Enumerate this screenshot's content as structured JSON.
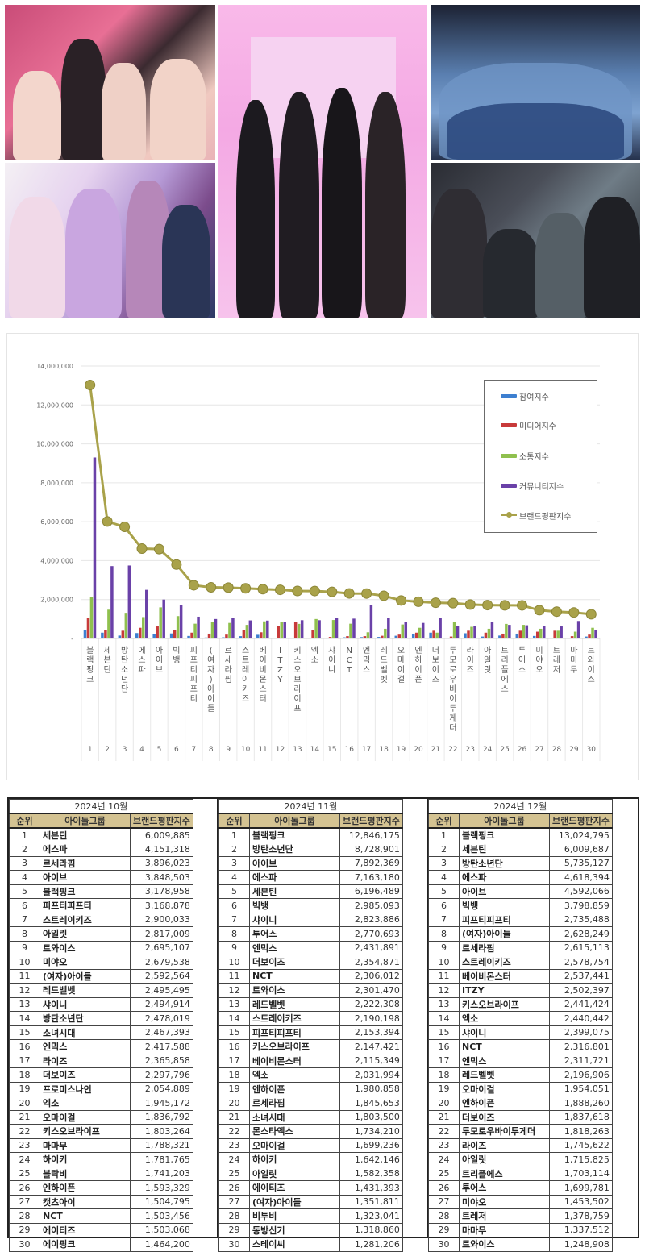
{
  "collage": {
    "photos": [
      {
        "id": "p1",
        "desc": "girl-group-pink-background"
      },
      {
        "id": "p2",
        "desc": "girl-group-lavender-outfits"
      },
      {
        "id": "p3",
        "desc": "four-member-girl-group-pink-room"
      },
      {
        "id": "p4",
        "desc": "boy-group-blue-suits"
      },
      {
        "id": "p5",
        "desc": "seven-member-boy-group-dark"
      }
    ]
  },
  "chart_data": {
    "type": "bar",
    "title": "",
    "xlabel": "",
    "ylabel": "",
    "ylim": [
      0,
      14000000
    ],
    "yticks": [
      "-",
      "2,000,000",
      "4,000,000",
      "6,000,000",
      "8,000,000",
      "10,000,000",
      "12,000,000",
      "14,000,000"
    ],
    "grid": true,
    "legend_position": "upper-right",
    "categories": [
      "블랙핑크",
      "세븐틴",
      "방탄소년단",
      "에스파",
      "아이브",
      "빅뱅",
      "피프티피프티",
      "(여자)아이들",
      "르세라핌",
      "스트레이키즈",
      "베이비몬스터",
      "ITZY",
      "키스오브라이프",
      "엑소",
      "샤이니",
      "NCT",
      "엔믹스",
      "레드벨벳",
      "오마이걸",
      "엔하이픈",
      "더보이즈",
      "투모로우바이투게더",
      "라이즈",
      "아일릿",
      "트리플에스",
      "투어스",
      "미야오",
      "트레저",
      "마마무",
      "트와이스"
    ],
    "ranks": [
      1,
      2,
      3,
      4,
      5,
      6,
      7,
      8,
      9,
      10,
      11,
      12,
      13,
      14,
      15,
      16,
      17,
      18,
      19,
      20,
      21,
      22,
      23,
      24,
      25,
      26,
      27,
      28,
      29,
      30
    ],
    "series": [
      {
        "name": "참여지수",
        "color": "#3d7fd0",
        "kind": "bar",
        "values": [
          420000,
          300000,
          150000,
          280000,
          220000,
          260000,
          130000,
          50000,
          60000,
          120000,
          190000,
          40000,
          30000,
          40000,
          40000,
          60000,
          70000,
          80000,
          140000,
          250000,
          300000,
          40000,
          270000,
          100000,
          150000,
          250000,
          130000,
          40000,
          40000,
          100000
        ]
      },
      {
        "name": "미디어지수",
        "color": "#c83a3a",
        "kind": "bar",
        "values": [
          1050000,
          420000,
          400000,
          550000,
          620000,
          450000,
          300000,
          250000,
          200000,
          450000,
          320000,
          650000,
          860000,
          450000,
          80000,
          120000,
          120000,
          140000,
          200000,
          300000,
          400000,
          100000,
          400000,
          300000,
          250000,
          400000,
          350000,
          400000,
          120000,
          200000
        ]
      },
      {
        "name": "소통지수",
        "color": "#8fc04e",
        "kind": "bar",
        "values": [
          2150000,
          1480000,
          1320000,
          1100000,
          1600000,
          1150000,
          760000,
          850000,
          800000,
          700000,
          880000,
          870000,
          750000,
          1000000,
          950000,
          760000,
          320000,
          500000,
          720000,
          550000,
          300000,
          850000,
          600000,
          500000,
          750000,
          700000,
          500000,
          400000,
          350000,
          550000
        ]
      },
      {
        "name": "커뮤니티지수",
        "color": "#6a41a8",
        "kind": "bar",
        "values": [
          9300000,
          3720000,
          3750000,
          2500000,
          2000000,
          1700000,
          1120000,
          1000000,
          1040000,
          930000,
          920000,
          850000,
          940000,
          940000,
          1040000,
          1020000,
          1700000,
          1060000,
          830000,
          800000,
          1050000,
          650000,
          640000,
          850000,
          700000,
          680000,
          650000,
          620000,
          900000,
          450000
        ]
      },
      {
        "name": "브랜드평판지수",
        "color": "#a9a24a",
        "kind": "line",
        "values": [
          13024795,
          6009687,
          5735127,
          4618394,
          4592066,
          3798859,
          2735488,
          2628249,
          2615113,
          2578754,
          2537441,
          2502397,
          2441424,
          2440442,
          2399075,
          2316801,
          2311721,
          2196906,
          1954051,
          1888260,
          1837618,
          1818263,
          1745622,
          1715825,
          1703114,
          1699781,
          1453502,
          1378759,
          1337512,
          1248908
        ]
      }
    ]
  },
  "legend": {
    "items": [
      "참여지수",
      "미디어지수",
      "소통지수",
      "커뮤니티지수",
      "브랜드평판지수"
    ]
  },
  "tables": [
    {
      "month": "2024년 10월",
      "headers": [
        "순위",
        "아이돌그룹",
        "브랜드평판지수"
      ],
      "rows": [
        [
          "1",
          "세븐틴",
          "6,009,885"
        ],
        [
          "2",
          "에스파",
          "4,151,318"
        ],
        [
          "3",
          "르세라핌",
          "3,896,023"
        ],
        [
          "4",
          "아이브",
          "3,848,503"
        ],
        [
          "5",
          "블랙핑크",
          "3,178,958"
        ],
        [
          "6",
          "피프티피프티",
          "3,168,878"
        ],
        [
          "7",
          "스트레이키즈",
          "2,900,033"
        ],
        [
          "8",
          "아일릿",
          "2,817,009"
        ],
        [
          "9",
          "트와이스",
          "2,695,107"
        ],
        [
          "10",
          "미야오",
          "2,679,538"
        ],
        [
          "11",
          "(여자)아이들",
          "2,592,564"
        ],
        [
          "12",
          "레드벨벳",
          "2,495,495"
        ],
        [
          "13",
          "샤이니",
          "2,494,914"
        ],
        [
          "14",
          "방탄소년단",
          "2,478,019"
        ],
        [
          "15",
          "소녀시대",
          "2,467,393"
        ],
        [
          "16",
          "엔믹스",
          "2,417,588"
        ],
        [
          "17",
          "라이즈",
          "2,365,858"
        ],
        [
          "18",
          "더보이즈",
          "2,297,796"
        ],
        [
          "19",
          "프로미스나인",
          "2,054,889"
        ],
        [
          "20",
          "엑소",
          "1,945,172"
        ],
        [
          "21",
          "오마이걸",
          "1,836,792"
        ],
        [
          "22",
          "키스오브라이프",
          "1,803,264"
        ],
        [
          "23",
          "마마무",
          "1,788,321"
        ],
        [
          "24",
          "하이키",
          "1,781,765"
        ],
        [
          "25",
          "블락비",
          "1,741,203"
        ],
        [
          "26",
          "엔하이픈",
          "1,593,329"
        ],
        [
          "27",
          "캣츠아이",
          "1,504,795"
        ],
        [
          "28",
          "NCT",
          "1,503,456"
        ],
        [
          "29",
          "에이티즈",
          "1,503,068"
        ],
        [
          "30",
          "에이핑크",
          "1,464,200"
        ]
      ]
    },
    {
      "month": "2024년 11월",
      "headers": [
        "순위",
        "아이돌그룹",
        "브랜드평판지수"
      ],
      "rows": [
        [
          "1",
          "블랙핑크",
          "12,846,175"
        ],
        [
          "2",
          "방탄소년단",
          "8,728,901"
        ],
        [
          "3",
          "아이브",
          "7,892,369"
        ],
        [
          "4",
          "에스파",
          "7,163,180"
        ],
        [
          "5",
          "세븐틴",
          "6,196,489"
        ],
        [
          "6",
          "빅뱅",
          "2,985,093"
        ],
        [
          "7",
          "샤이니",
          "2,823,886"
        ],
        [
          "8",
          "투어스",
          "2,770,693"
        ],
        [
          "9",
          "엔믹스",
          "2,431,891"
        ],
        [
          "10",
          "더보이즈",
          "2,354,871"
        ],
        [
          "11",
          "NCT",
          "2,306,012"
        ],
        [
          "12",
          "트와이스",
          "2,301,470"
        ],
        [
          "13",
          "레드벨벳",
          "2,222,308"
        ],
        [
          "14",
          "스트레이키즈",
          "2,190,198"
        ],
        [
          "15",
          "피프티피프티",
          "2,153,394"
        ],
        [
          "16",
          "키스오브라이프",
          "2,147,421"
        ],
        [
          "17",
          "베이비몬스터",
          "2,115,349"
        ],
        [
          "18",
          "엑소",
          "2,031,994"
        ],
        [
          "19",
          "엔하이픈",
          "1,980,858"
        ],
        [
          "20",
          "르세라핌",
          "1,845,653"
        ],
        [
          "21",
          "소녀시대",
          "1,803,500"
        ],
        [
          "22",
          "몬스타엑스",
          "1,734,210"
        ],
        [
          "23",
          "오마이걸",
          "1,699,236"
        ],
        [
          "24",
          "하이키",
          "1,642,146"
        ],
        [
          "25",
          "아일릿",
          "1,582,358"
        ],
        [
          "26",
          "에이티즈",
          "1,431,393"
        ],
        [
          "27",
          "(여자)아이들",
          "1,351,811"
        ],
        [
          "28",
          "비투비",
          "1,323,041"
        ],
        [
          "29",
          "동방신기",
          "1,318,860"
        ],
        [
          "30",
          "스테이씨",
          "1,281,206"
        ]
      ]
    },
    {
      "month": "2024년 12월",
      "headers": [
        "순위",
        "아이돌그룹",
        "브랜드평판지수"
      ],
      "rows": [
        [
          "1",
          "블랙핑크",
          "13,024,795"
        ],
        [
          "2",
          "세븐틴",
          "6,009,687"
        ],
        [
          "3",
          "방탄소년단",
          "5,735,127"
        ],
        [
          "4",
          "에스파",
          "4,618,394"
        ],
        [
          "5",
          "아이브",
          "4,592,066"
        ],
        [
          "6",
          "빅뱅",
          "3,798,859"
        ],
        [
          "7",
          "피프티피프티",
          "2,735,488"
        ],
        [
          "8",
          "(여자)아이들",
          "2,628,249"
        ],
        [
          "9",
          "르세라핌",
          "2,615,113"
        ],
        [
          "10",
          "스트레이키즈",
          "2,578,754"
        ],
        [
          "11",
          "베이비몬스터",
          "2,537,441"
        ],
        [
          "12",
          "ITZY",
          "2,502,397"
        ],
        [
          "13",
          "키스오브라이프",
          "2,441,424"
        ],
        [
          "14",
          "엑소",
          "2,440,442"
        ],
        [
          "15",
          "샤이니",
          "2,399,075"
        ],
        [
          "16",
          "NCT",
          "2,316,801"
        ],
        [
          "17",
          "엔믹스",
          "2,311,721"
        ],
        [
          "18",
          "레드벨벳",
          "2,196,906"
        ],
        [
          "19",
          "오마이걸",
          "1,954,051"
        ],
        [
          "20",
          "엔하이픈",
          "1,888,260"
        ],
        [
          "21",
          "더보이즈",
          "1,837,618"
        ],
        [
          "22",
          "투모로우바이투게더",
          "1,818,263"
        ],
        [
          "23",
          "라이즈",
          "1,745,622"
        ],
        [
          "24",
          "아일릿",
          "1,715,825"
        ],
        [
          "25",
          "트리플에스",
          "1,703,114"
        ],
        [
          "26",
          "투어스",
          "1,699,781"
        ],
        [
          "27",
          "미야오",
          "1,453,502"
        ],
        [
          "28",
          "트레저",
          "1,378,759"
        ],
        [
          "29",
          "마마무",
          "1,337,512"
        ],
        [
          "30",
          "트와이스",
          "1,248,908"
        ]
      ]
    }
  ]
}
